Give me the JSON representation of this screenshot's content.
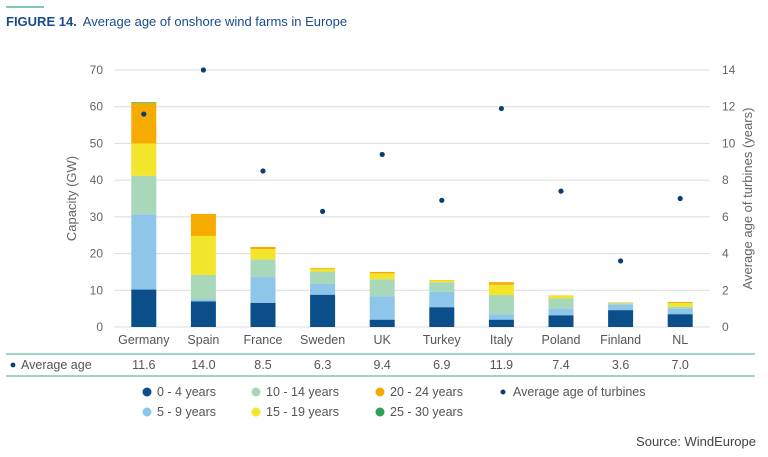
{
  "figure": {
    "number": "FIGURE 14.",
    "title": "Average age of onshore wind farms in Europe",
    "source": "Source: WindEurope"
  },
  "chart_data": {
    "type": "bar",
    "stacked": true,
    "categories": [
      "Germany",
      "Spain",
      "France",
      "Sweden",
      "UK",
      "Turkey",
      "Italy",
      "Poland",
      "Finland",
      "NL"
    ],
    "ylabel": "Capacity (GW)",
    "ylim": [
      0,
      70
    ],
    "yticks": [
      0,
      10,
      20,
      30,
      40,
      50,
      60,
      70
    ],
    "y2label": "Average age of turbines (years)",
    "y2lim": [
      0,
      14
    ],
    "y2ticks": [
      0,
      2,
      4,
      6,
      8,
      10,
      12,
      14
    ],
    "grid": true,
    "legend_position": "bottom",
    "series": [
      {
        "name": "0 - 4 years",
        "color": "#0b4f8a",
        "values": [
          10.2,
          7.0,
          6.6,
          8.8,
          2.0,
          5.4,
          2.0,
          3.2,
          4.6,
          3.5
        ]
      },
      {
        "name": "5 - 9 years",
        "color": "#8ec6ea",
        "values": [
          20.5,
          0.5,
          7.0,
          3.0,
          6.4,
          4.2,
          1.5,
          1.8,
          1.4,
          1.5
        ]
      },
      {
        "name": "10 - 14 years",
        "color": "#a8d8b9",
        "values": [
          10.5,
          6.7,
          4.8,
          3.3,
          4.6,
          2.6,
          5.2,
          2.8,
          0.5,
          0.5
        ]
      },
      {
        "name": "15 - 19 years",
        "color": "#f2e52a",
        "values": [
          8.8,
          10.6,
          2.8,
          0.8,
          1.6,
          0.5,
          2.8,
          0.7,
          0.1,
          1.0
        ]
      },
      {
        "name": "20 - 24 years",
        "color": "#f6ab00",
        "values": [
          11.0,
          6.0,
          0.6,
          0.2,
          0.4,
          0.1,
          0.7,
          0.1,
          0.1,
          0.3
        ]
      },
      {
        "name": "25 - 30 years",
        "color": "#2aa354",
        "values": [
          0.2,
          0.0,
          0.0,
          0.0,
          0.0,
          0.0,
          0.0,
          0.0,
          0.0,
          0.0
        ]
      }
    ],
    "average_age": {
      "name": "Average age of turbines",
      "color": "#0b3c73",
      "values": [
        11.6,
        14.0,
        8.5,
        6.3,
        9.4,
        6.9,
        11.9,
        7.4,
        3.6,
        7.0
      ]
    },
    "table_row": {
      "label": "Average age",
      "values": [
        "11.6",
        "14.0",
        "8.5",
        "6.3",
        "9.4",
        "6.9",
        "11.9",
        "7.4",
        "3.6",
        "7.0"
      ]
    },
    "legend": [
      {
        "label": "0 - 4 years",
        "color": "#0b4f8a"
      },
      {
        "label": "10 - 14 years",
        "color": "#a8d8b9"
      },
      {
        "label": "20 - 24 years",
        "color": "#f6ab00"
      },
      {
        "label": "Average age of turbines",
        "color": "#0b3c73",
        "marker": "dot"
      },
      {
        "label": "5 - 9 years",
        "color": "#8ec6ea"
      },
      {
        "label": "15 - 19 years",
        "color": "#f2e52a"
      },
      {
        "label": "25 - 30 years",
        "color": "#2aa354"
      }
    ]
  }
}
